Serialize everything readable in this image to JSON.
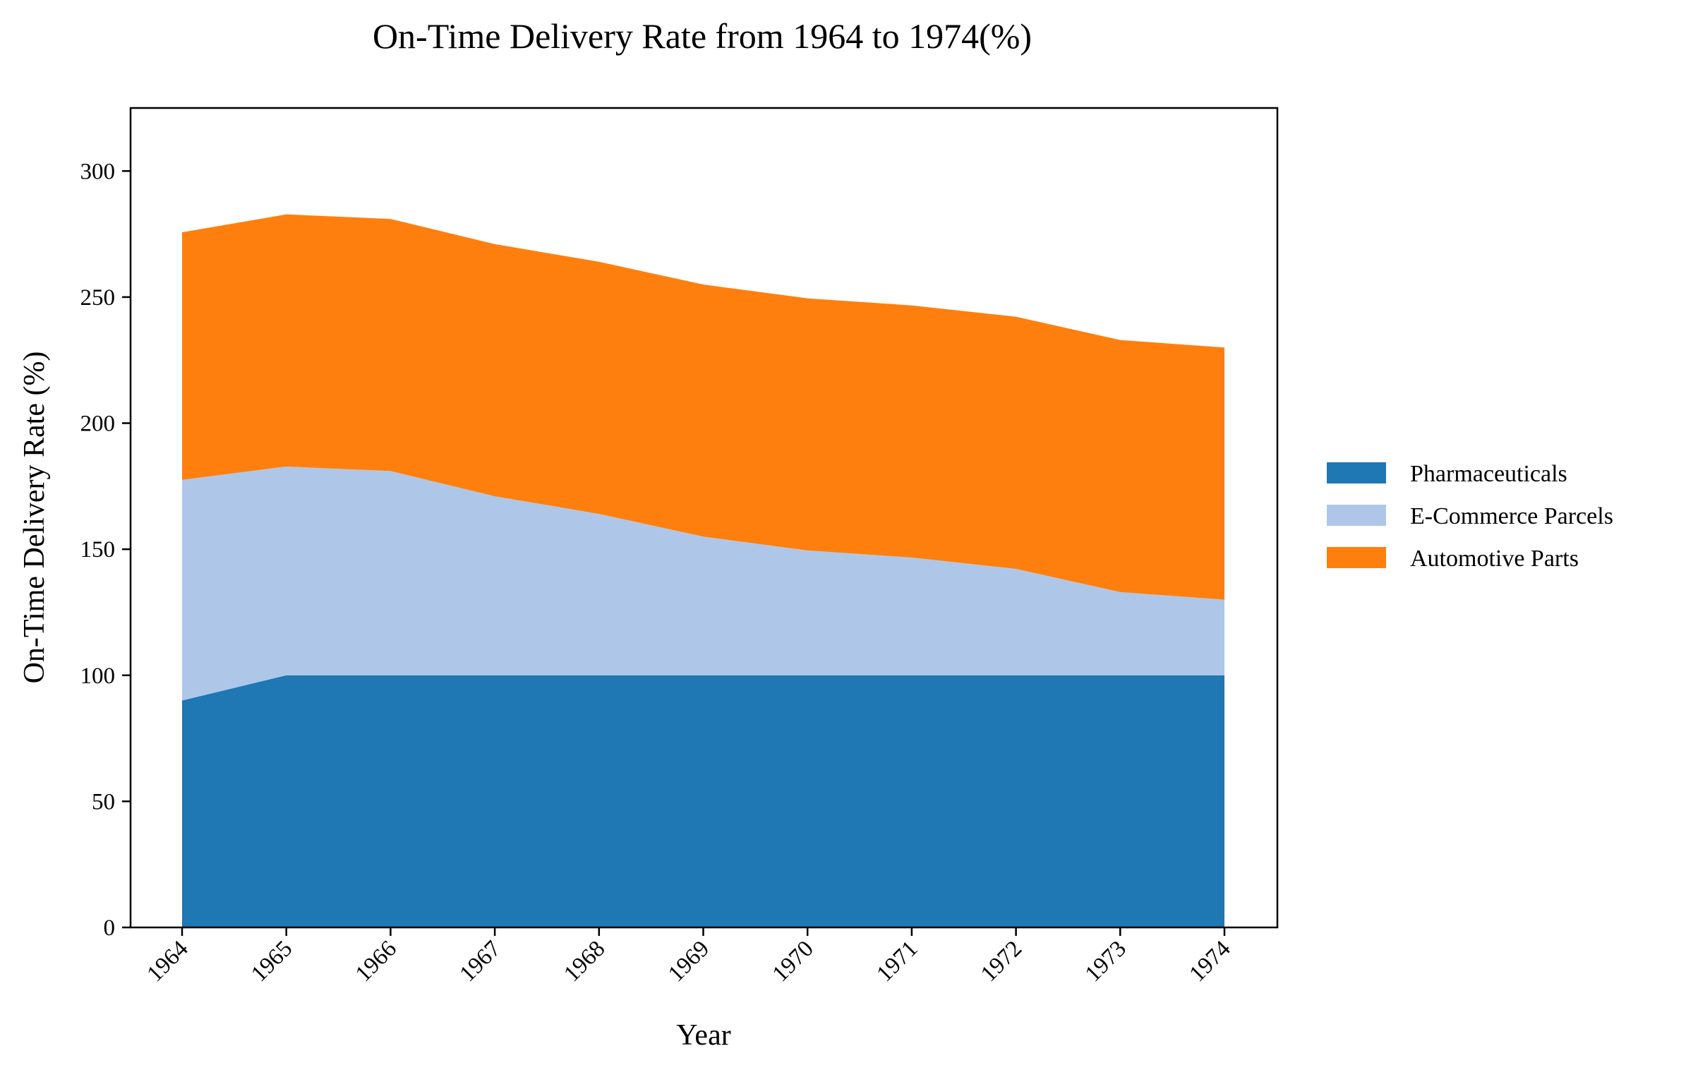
{
  "chart_data": {
    "type": "area",
    "stacked": true,
    "title": "On-Time Delivery Rate from 1964 to 1974(%)",
    "xlabel": "Year",
    "ylabel": "On-Time Delivery Rate (%)",
    "x": [
      "1964",
      "1965",
      "1966",
      "1967",
      "1968",
      "1969",
      "1970",
      "1971",
      "1972",
      "1973",
      "1974"
    ],
    "ylim": [
      0,
      325
    ],
    "yticks": [
      0,
      50,
      100,
      150,
      200,
      250,
      300
    ],
    "grid": false,
    "legend_position": "right",
    "series": [
      {
        "name": "Pharmaceuticals",
        "color": "#1f77b4",
        "values": [
          90,
          100,
          100,
          100,
          100,
          100,
          100,
          100,
          100,
          100,
          100
        ]
      },
      {
        "name": "E-Commerce Parcels",
        "color": "#aec7e8",
        "values": [
          87.5,
          82.8,
          81,
          71,
          64,
          55,
          49.5,
          46.7,
          42.2,
          33,
          30
        ]
      },
      {
        "name": "Automotive Parts",
        "color": "#ff7f0e",
        "values": [
          98.2,
          100,
          100,
          100,
          100,
          100,
          100,
          100,
          100,
          100,
          100
        ]
      }
    ]
  }
}
